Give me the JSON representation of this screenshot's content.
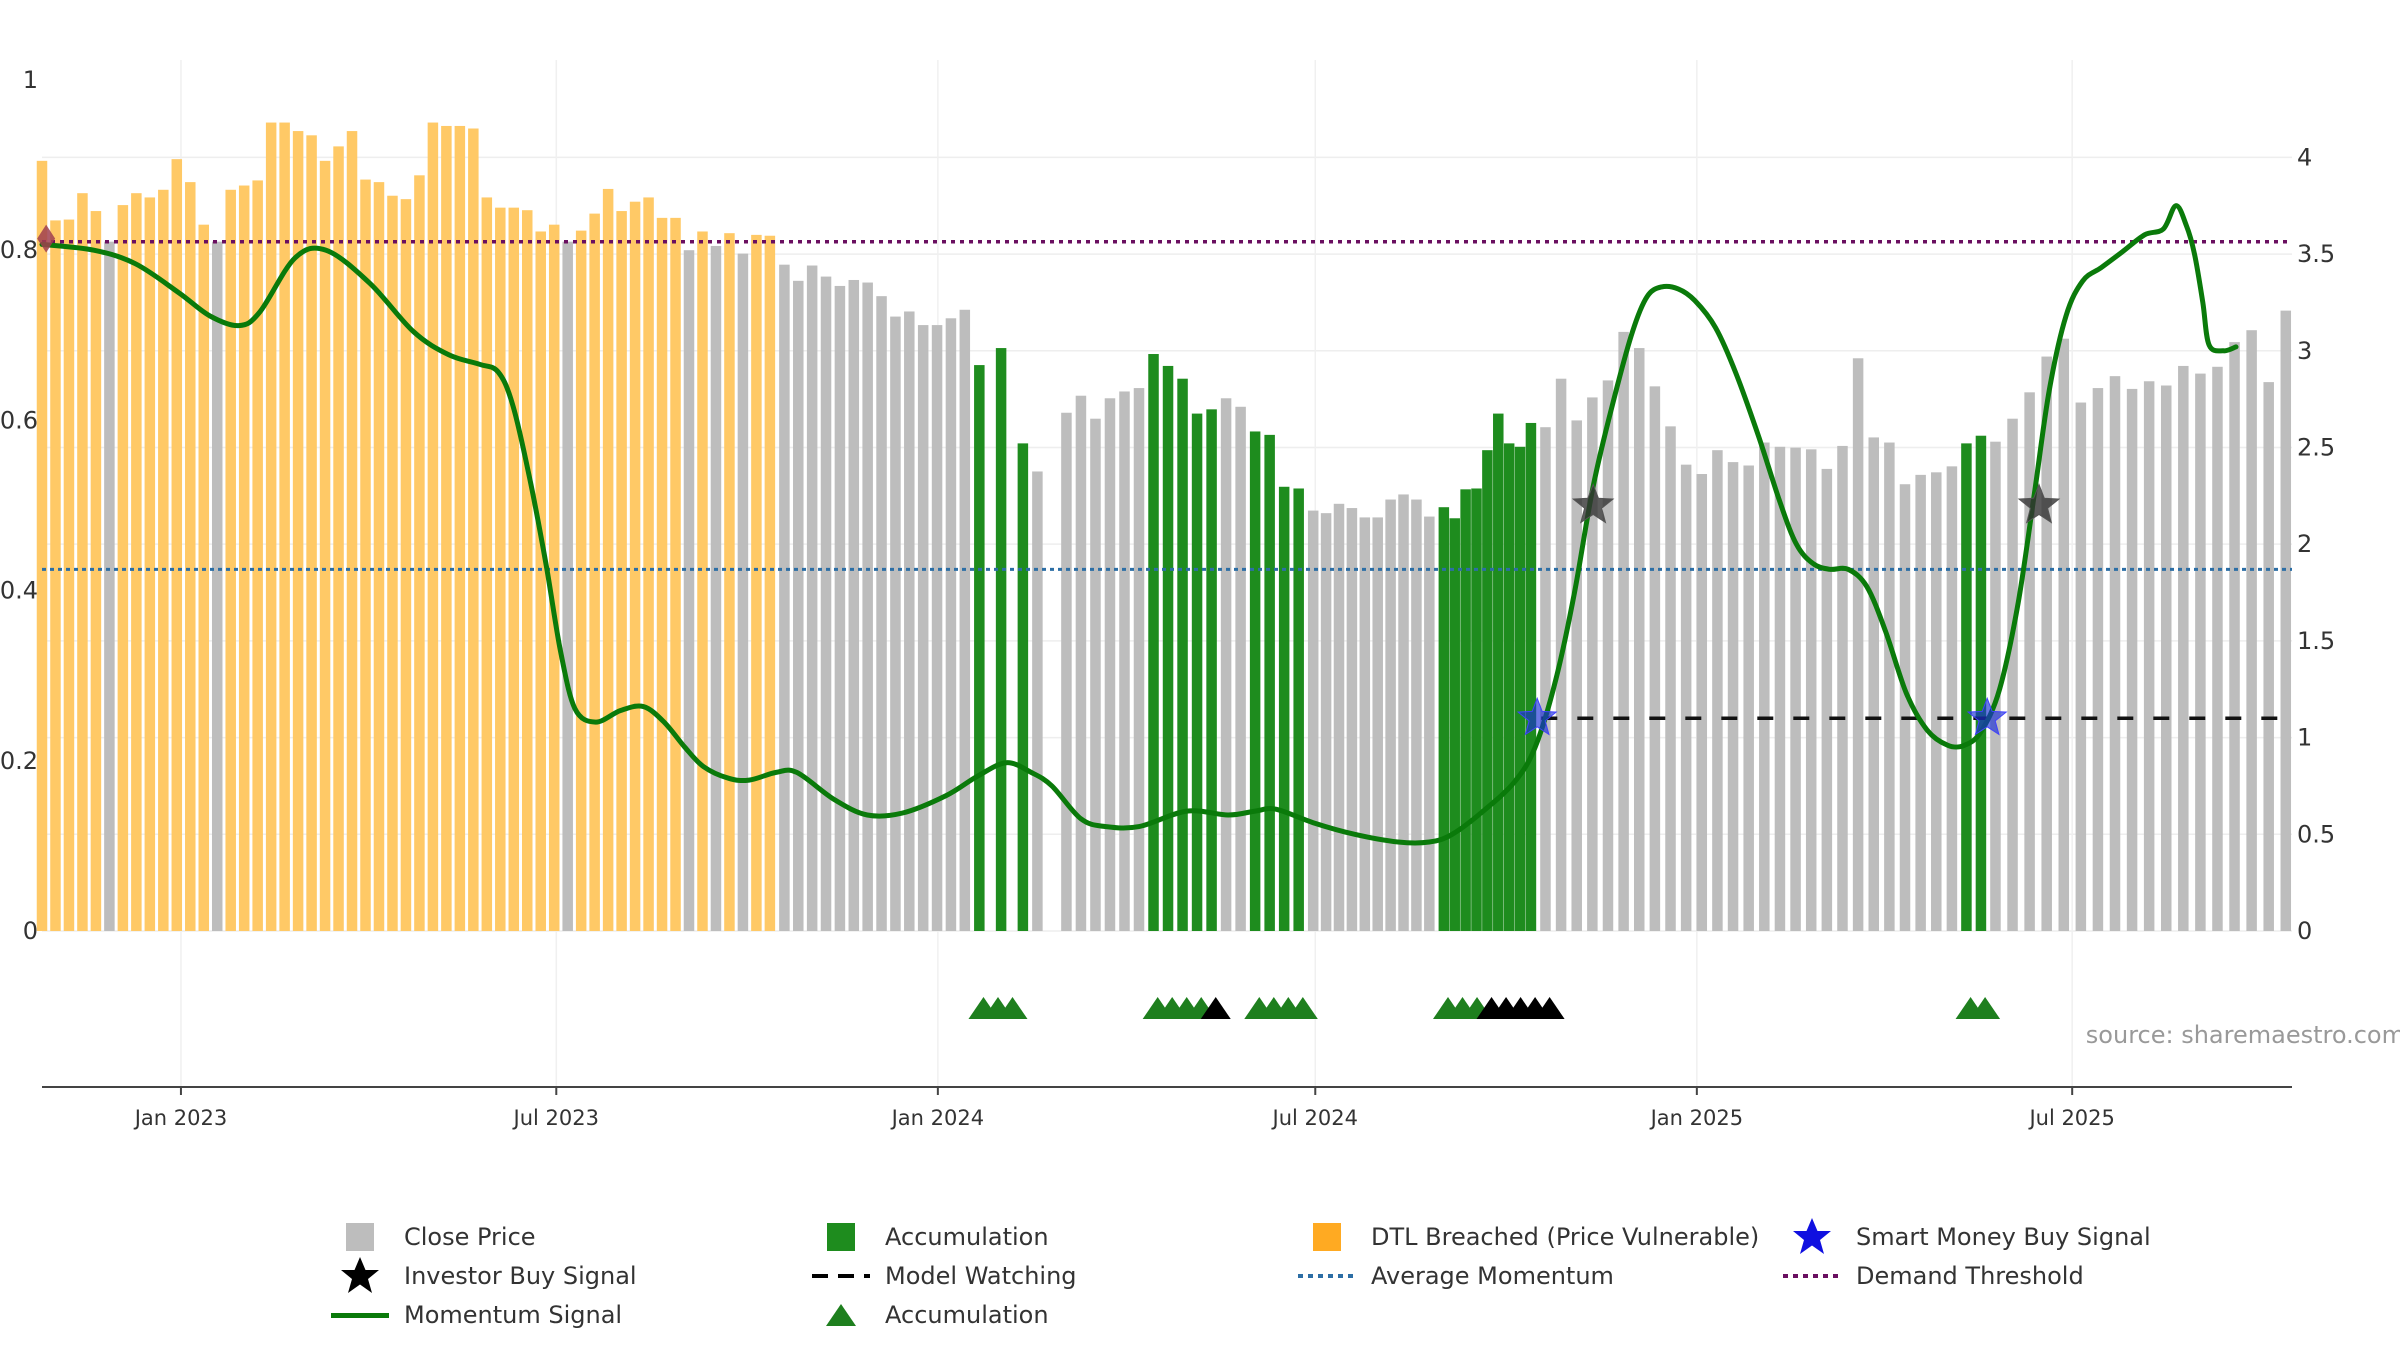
{
  "chart_data": {
    "type": "bar",
    "source_text": "source: sharemaestro.com",
    "x_ticks": [
      "Jan 2023",
      "Jul 2023",
      "Jan 2024",
      "Jul 2024",
      "Jan 2025",
      "Jul 2025"
    ],
    "x_tick_dates": [
      "2023-01-01",
      "2023-07-01",
      "2024-01-01",
      "2024-07-01",
      "2025-01-01",
      "2025-07-01"
    ],
    "x_range": [
      "2022-10-26",
      "2025-10-15"
    ],
    "left_axis": {
      "range": [
        0,
        1
      ],
      "ticks": [
        "0",
        "0.2",
        "0.4",
        "0.6",
        "0.8",
        "1"
      ]
    },
    "right_axis": {
      "range": [
        0,
        4.4
      ],
      "ticks": [
        "0",
        "0.5",
        "1",
        "1.5",
        "2",
        "2.5",
        "3",
        "3.5",
        "4"
      ]
    },
    "average_momentum": 0.425,
    "demand_threshold": 0.81,
    "model_watching_level": 0.25,
    "model_watching_range": [
      "2024-10-18",
      "2025-10-15"
    ],
    "colors": {
      "close": "#bdbdbd",
      "accumulation": "#1e8c1e",
      "dtl": "#ffc966",
      "momentum": "#0a7a0a",
      "average": "#2c6ea5",
      "threshold": "#6a0f60",
      "smart_money": "#1a2fd6",
      "investor": "#333333"
    },
    "bars": [
      {
        "start": "2022-10-26",
        "end": "2023-10-12",
        "state": "dtl",
        "values": [
          0.905,
          0.835,
          0.836,
          0.867,
          0.846,
          0.81,
          0.853,
          0.867,
          0.862,
          0.871,
          0.907,
          0.88,
          0.83,
          0.81,
          0.871,
          0.876,
          0.882,
          0.95,
          0.95,
          0.94,
          0.935,
          0.905,
          0.922,
          0.94,
          0.883,
          0.88,
          0.864,
          0.86,
          0.888,
          0.95,
          0.946,
          0.946,
          0.943,
          0.862,
          0.85,
          0.85,
          0.847,
          0.822,
          0.83,
          0.81,
          0.823,
          0.843,
          0.872,
          0.846,
          0.857,
          0.862,
          0.838,
          0.838,
          0.8,
          0.822,
          0.805,
          0.82,
          0.796,
          0.818,
          0.817
        ],
        "close_indices": [
          5,
          13,
          39,
          48,
          50,
          52
        ]
      },
      {
        "start": "2023-10-19",
        "end": "2024-01-14",
        "state": "close",
        "values": [
          0.783,
          0.764,
          0.782,
          0.769,
          0.758,
          0.765,
          0.762,
          0.746,
          0.722,
          0.728,
          0.712,
          0.712,
          0.72,
          0.73
        ]
      },
      {
        "start": "2024-01-21",
        "end": "2024-02-11",
        "state": "accumulation",
        "values": [
          0.665,
          0.685,
          0.573
        ]
      },
      {
        "start": "2024-02-18",
        "end": "2024-02-18",
        "state": "close",
        "values": [
          0.54
        ]
      },
      {
        "start": "2024-03-03",
        "end": "2024-04-07",
        "state": "close",
        "values": [
          0.609,
          0.629,
          0.602,
          0.626,
          0.634,
          0.638
        ]
      },
      {
        "start": "2024-04-14",
        "end": "2024-05-12",
        "state": "accumulation",
        "values": [
          0.678,
          0.664,
          0.649,
          0.608,
          0.613
        ]
      },
      {
        "start": "2024-05-19",
        "end": "2024-05-26",
        "state": "close",
        "values": [
          0.626,
          0.616
        ]
      },
      {
        "start": "2024-06-02",
        "end": "2024-06-23",
        "state": "accumulation",
        "values": [
          0.587,
          0.583,
          0.522,
          0.52
        ]
      },
      {
        "start": "2024-06-30",
        "end": "2024-08-25",
        "state": "close",
        "values": [
          0.494,
          0.491,
          0.502,
          0.497,
          0.486,
          0.486,
          0.507,
          0.513,
          0.507,
          0.487
        ]
      },
      {
        "start": "2024-09-01",
        "end": "2024-10-13",
        "state": "accumulation",
        "values": [
          0.498,
          0.485,
          0.519,
          0.52,
          0.565,
          0.608,
          0.573,
          0.569,
          0.597
        ]
      },
      {
        "start": "2024-10-20",
        "end": "2025-05-04",
        "state": "close",
        "values": [
          0.592,
          0.649,
          0.6,
          0.627,
          0.647,
          0.704,
          0.685,
          0.64,
          0.593,
          0.548,
          0.537,
          0.565,
          0.551,
          0.547,
          0.574,
          0.569,
          0.568,
          0.566,
          0.543,
          0.57,
          0.673,
          0.58,
          0.574,
          0.525,
          0.536,
          0.539,
          0.546
        ]
      },
      {
        "start": "2025-05-11",
        "end": "2025-05-18",
        "state": "accumulation",
        "values": [
          0.573,
          0.582
        ]
      },
      {
        "start": "2025-05-25",
        "end": "2025-10-12",
        "state": "close",
        "values": [
          0.575,
          0.602,
          0.633,
          0.675,
          0.696,
          0.621,
          0.638,
          0.652,
          0.637,
          0.646,
          0.641,
          0.664,
          0.655,
          0.663,
          0.692,
          0.706,
          0.645,
          0.729
        ]
      }
    ],
    "momentum": [
      [
        "2022-10-26",
        3.55
      ],
      [
        "2022-11-20",
        3.52
      ],
      [
        "2022-12-10",
        3.45
      ],
      [
        "2022-12-31",
        3.3
      ],
      [
        "2023-01-15",
        3.18
      ],
      [
        "2023-01-29",
        3.13
      ],
      [
        "2023-02-08",
        3.2
      ],
      [
        "2023-02-25",
        3.48
      ],
      [
        "2023-03-12",
        3.52
      ],
      [
        "2023-04-02",
        3.35
      ],
      [
        "2023-04-23",
        3.1
      ],
      [
        "2023-05-10",
        2.98
      ],
      [
        "2023-05-25",
        2.93
      ],
      [
        "2023-06-03",
        2.89
      ],
      [
        "2023-06-10",
        2.72
      ],
      [
        "2023-06-18",
        2.35
      ],
      [
        "2023-06-26",
        1.9
      ],
      [
        "2023-07-03",
        1.45
      ],
      [
        "2023-07-10",
        1.15
      ],
      [
        "2023-07-20",
        1.08
      ],
      [
        "2023-08-01",
        1.14
      ],
      [
        "2023-08-12",
        1.16
      ],
      [
        "2023-08-22",
        1.08
      ],
      [
        "2023-09-01",
        0.95
      ],
      [
        "2023-09-10",
        0.85
      ],
      [
        "2023-09-22",
        0.79
      ],
      [
        "2023-10-02",
        0.78
      ],
      [
        "2023-10-15",
        0.82
      ],
      [
        "2023-10-25",
        0.82
      ],
      [
        "2023-11-12",
        0.68
      ],
      [
        "2023-11-28",
        0.6
      ],
      [
        "2023-12-15",
        0.61
      ],
      [
        "2024-01-05",
        0.7
      ],
      [
        "2024-01-20",
        0.8
      ],
      [
        "2024-02-03",
        0.87
      ],
      [
        "2024-02-15",
        0.82
      ],
      [
        "2024-02-25",
        0.75
      ],
      [
        "2024-03-10",
        0.58
      ],
      [
        "2024-03-22",
        0.54
      ],
      [
        "2024-04-07",
        0.54
      ],
      [
        "2024-04-30",
        0.62
      ],
      [
        "2024-05-20",
        0.6
      ],
      [
        "2024-06-02",
        0.62
      ],
      [
        "2024-06-12",
        0.63
      ],
      [
        "2024-06-30",
        0.56
      ],
      [
        "2024-07-20",
        0.5
      ],
      [
        "2024-08-10",
        0.46
      ],
      [
        "2024-08-25",
        0.46
      ],
      [
        "2024-09-05",
        0.5
      ],
      [
        "2024-09-20",
        0.62
      ],
      [
        "2024-10-05",
        0.77
      ],
      [
        "2024-10-15",
        0.95
      ],
      [
        "2024-10-25",
        1.3
      ],
      [
        "2024-11-03",
        1.75
      ],
      [
        "2024-11-12",
        2.3
      ],
      [
        "2024-11-22",
        2.75
      ],
      [
        "2024-12-01",
        3.1
      ],
      [
        "2024-12-08",
        3.28
      ],
      [
        "2024-12-15",
        3.33
      ],
      [
        "2024-12-23",
        3.32
      ],
      [
        "2024-12-31",
        3.26
      ],
      [
        "2025-01-10",
        3.12
      ],
      [
        "2025-01-20",
        2.88
      ],
      [
        "2025-01-31",
        2.55
      ],
      [
        "2025-02-10",
        2.22
      ],
      [
        "2025-02-18",
        2.0
      ],
      [
        "2025-02-26",
        1.9
      ],
      [
        "2025-03-06",
        1.87
      ],
      [
        "2025-03-15",
        1.87
      ],
      [
        "2025-03-24",
        1.78
      ],
      [
        "2025-04-02",
        1.55
      ],
      [
        "2025-04-12",
        1.23
      ],
      [
        "2025-04-22",
        1.04
      ],
      [
        "2025-05-02",
        0.96
      ],
      [
        "2025-05-10",
        0.96
      ],
      [
        "2025-05-18",
        1.03
      ],
      [
        "2025-05-27",
        1.25
      ],
      [
        "2025-06-05",
        1.7
      ],
      [
        "2025-06-13",
        2.28
      ],
      [
        "2025-06-20",
        2.8
      ],
      [
        "2025-06-28",
        3.18
      ],
      [
        "2025-07-06",
        3.36
      ],
      [
        "2025-07-15",
        3.43
      ],
      [
        "2025-07-25",
        3.51
      ],
      [
        "2025-08-05",
        3.6
      ],
      [
        "2025-08-14",
        3.63
      ],
      [
        "2025-08-20",
        3.75
      ],
      [
        "2025-08-25",
        3.65
      ],
      [
        "2025-08-29",
        3.5
      ],
      [
        "2025-09-02",
        3.25
      ],
      [
        "2025-09-05",
        3.03
      ],
      [
        "2025-09-12",
        3.0
      ],
      [
        "2025-09-18",
        3.02
      ]
    ],
    "momentum_dtl_until": "2023-10-12",
    "smart_money_signals": [
      [
        "2024-10-16",
        1.1
      ],
      [
        "2025-05-21",
        1.1
      ]
    ],
    "investor_signals": [
      [
        "2024-11-12",
        2.2
      ],
      [
        "2025-06-15",
        2.2
      ]
    ],
    "dtl_marker": [
      "2022-10-28",
      3.58
    ],
    "triangles": {
      "accumulation": [
        "2024-01-23",
        "2024-01-30",
        "2024-02-06",
        "2024-04-16",
        "2024-04-23",
        "2024-04-30",
        "2024-05-07",
        "2024-06-04",
        "2024-06-11",
        "2024-06-18",
        "2024-06-25",
        "2024-09-03",
        "2024-09-10",
        "2024-09-17",
        "2025-05-13",
        "2025-05-20"
      ],
      "model_watching": [
        "2024-05-14",
        "2024-09-24",
        "2024-10-01",
        "2024-10-08",
        "2024-10-15",
        "2024-10-22"
      ]
    }
  },
  "legend": {
    "close_price": "Close Price",
    "accumulation": "Accumulation",
    "dtl_breached": "DTL Breached (Price Vulnerable)",
    "smart_money": "Smart Money Buy Signal",
    "investor_buy": "Investor Buy Signal",
    "model_watching": "Model Watching",
    "average_momentum": "Average Momentum",
    "demand_threshold": "Demand Threshold",
    "momentum_signal": "Momentum Signal",
    "accumulation_triangle": "Accumulation"
  }
}
